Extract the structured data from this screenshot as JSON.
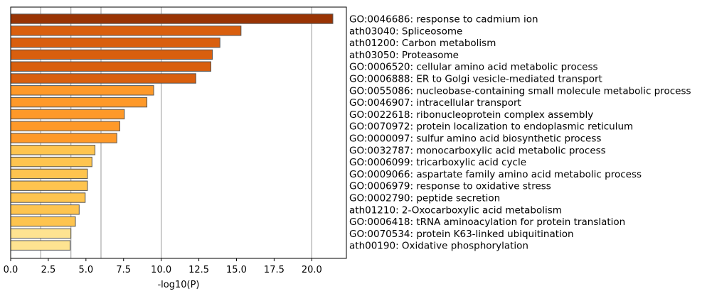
{
  "chart_data": {
    "type": "bar",
    "orientation": "horizontal",
    "xlabel": "-log10(P)",
    "ylabel": "",
    "xlim": [
      0,
      22.3
    ],
    "xticks": [
      0,
      2.5,
      5,
      7.5,
      10,
      12.5,
      15,
      17.5,
      20
    ],
    "xtick_labels": [
      "0.0",
      "2.5",
      "5.0",
      "7.5",
      "10.0",
      "12.5",
      "15.0",
      "17.5",
      "20.0"
    ],
    "gridlines_x": [
      2,
      4,
      6,
      10,
      20
    ],
    "categories": [
      "GO:0046686: response to cadmium ion",
      "ath03040: Spliceosome",
      "ath01200: Carbon metabolism",
      "ath03050: Proteasome",
      "GO:0006520: cellular amino acid metabolic process",
      "GO:0006888: ER to Golgi vesicle-mediated transport",
      "GO:0055086: nucleobase-containing small molecule metabolic process",
      "GO:0046907: intracellular transport",
      "GO:0022618: ribonucleoprotein complex assembly",
      "GO:0070972: protein localization to endoplasmic reticulum",
      "GO:0000097: sulfur amino acid biosynthetic process",
      "GO:0032787: monocarboxylic acid metabolic process",
      "GO:0006099: tricarboxylic acid cycle",
      "GO:0009066: aspartate family amino acid metabolic process",
      "GO:0006979: response to oxidative stress",
      "GO:0002790: peptide secretion",
      "ath01210: 2-Oxocarboxylic acid metabolism",
      "GO:0006418: tRNA aminoacylation for protein translation",
      "GO:0070534: protein K63-linked ubiquitination",
      "ath00190: Oxidative phosphorylation"
    ],
    "values": [
      21.4,
      15.3,
      13.9,
      13.4,
      13.3,
      12.3,
      9.5,
      9.05,
      7.55,
      7.25,
      7.05,
      5.6,
      5.4,
      5.1,
      5.1,
      4.95,
      4.55,
      4.3,
      4.0,
      3.95
    ],
    "colors": [
      "#993404",
      "#d95f0e",
      "#d95f0e",
      "#d95f0e",
      "#d95f0e",
      "#d95f0e",
      "#fe9929",
      "#fe9929",
      "#fe9929",
      "#fe9929",
      "#fe9929",
      "#fec44f",
      "#fec44f",
      "#fec44f",
      "#fec44f",
      "#fec44f",
      "#fec44f",
      "#fec44f",
      "#fee391",
      "#fee391"
    ],
    "bar_edge_color": "#555555",
    "grid": true,
    "legend": "none"
  }
}
